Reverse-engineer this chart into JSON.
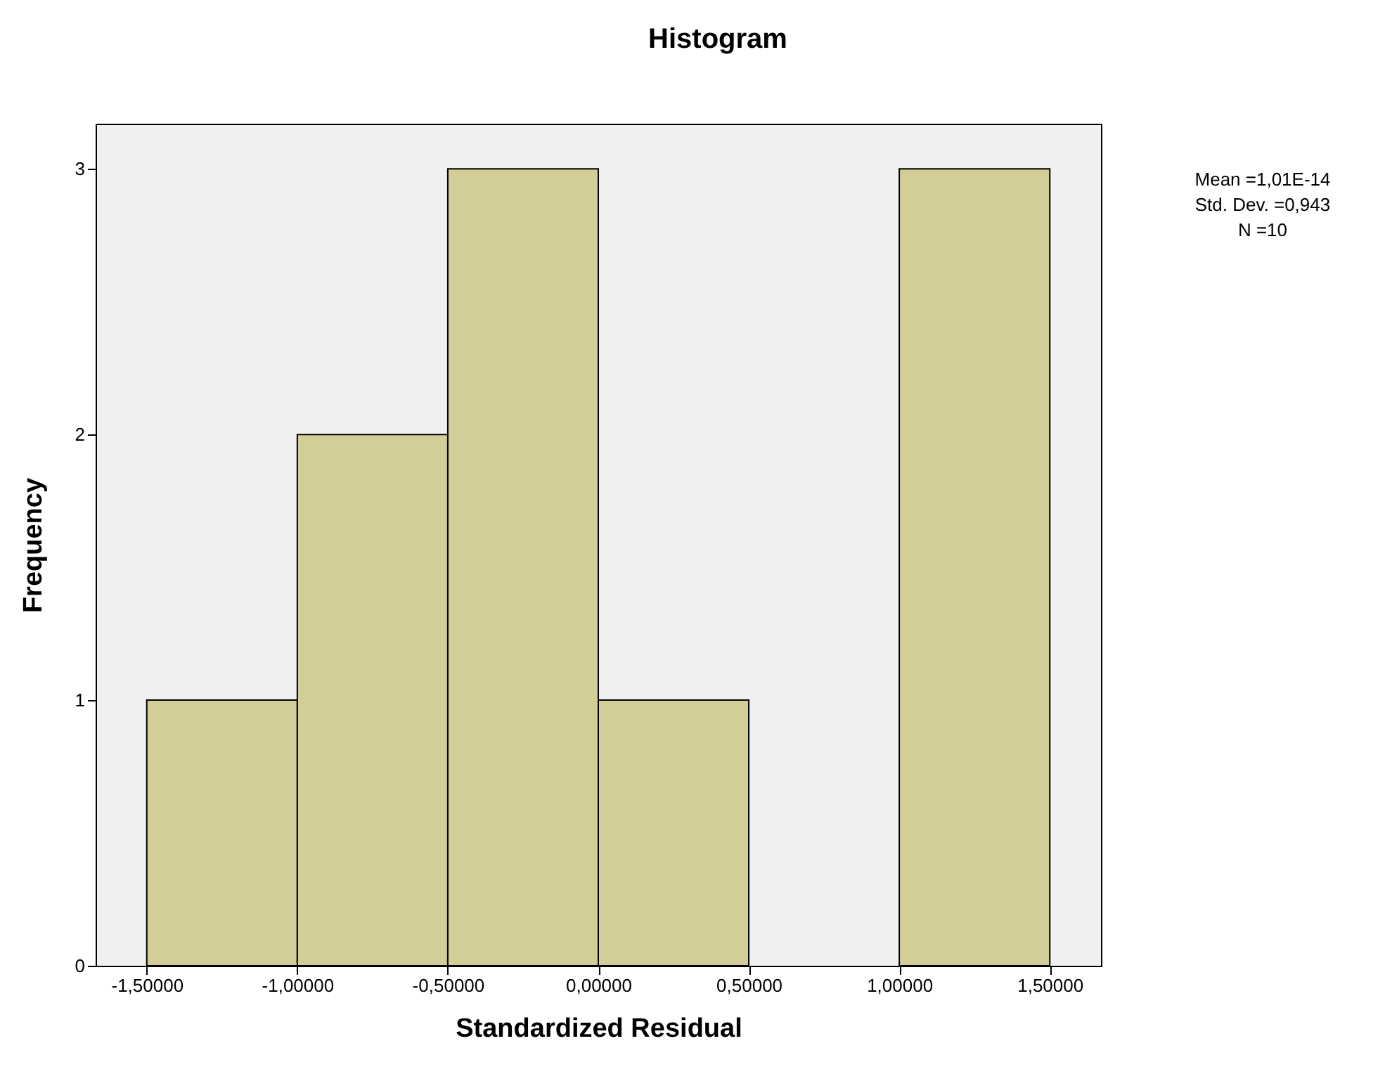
{
  "chart_data": {
    "type": "histogram",
    "title": "Histogram",
    "xlabel": "Standardized Residual",
    "ylabel": "Frequency",
    "bins": [
      -1.5,
      -1.0,
      -0.5,
      0.0,
      0.5,
      1.0,
      1.5
    ],
    "values": [
      1,
      2,
      3,
      1,
      0,
      3
    ],
    "color": "#d3ce98",
    "xlim": [
      -1.67,
      1.67
    ],
    "xticks": [
      {
        "value": -1.5,
        "label": "-1,50000"
      },
      {
        "value": -1.0,
        "label": "-1,00000"
      },
      {
        "value": -0.5,
        "label": "-0,50000"
      },
      {
        "value": 0.0,
        "label": "0,00000"
      },
      {
        "value": 0.5,
        "label": "0,50000"
      },
      {
        "value": 1.0,
        "label": "1,00000"
      },
      {
        "value": 1.5,
        "label": "1,50000"
      }
    ],
    "ylim": [
      0,
      3.17
    ],
    "yticks": [
      0,
      1,
      2,
      3
    ],
    "annotations": [
      "Mean =1,01E-14",
      "Std. Dev. =0,943",
      "N =10"
    ]
  }
}
